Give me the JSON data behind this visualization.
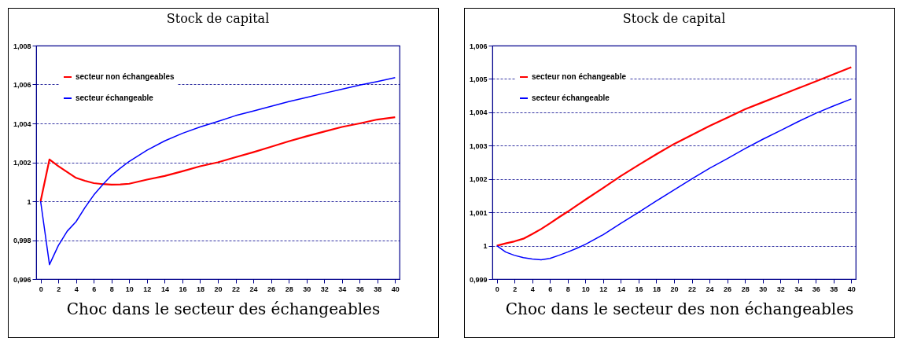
{
  "chart_data": [
    {
      "type": "line",
      "title": "Stock de capital",
      "annotations": [
        "Choc dans le secteur des échangeables"
      ],
      "x": [
        0,
        1,
        2,
        3,
        4,
        5,
        6,
        7,
        8,
        9,
        10,
        12,
        14,
        16,
        18,
        20,
        22,
        24,
        26,
        28,
        30,
        32,
        34,
        36,
        38,
        40
      ],
      "series": [
        {
          "name": "secteur non échangeables",
          "color": "#ff0000",
          "values": [
            1.0,
            1.00215,
            1.0018,
            1.0015,
            1.0012,
            1.00105,
            1.00093,
            1.00088,
            1.00085,
            1.00086,
            1.0009,
            1.00111,
            1.0013,
            1.00154,
            1.0018,
            1.002,
            1.00226,
            1.00252,
            1.0028,
            1.00308,
            1.00334,
            1.00358,
            1.00382,
            1.004,
            1.0042,
            1.00432
          ]
        },
        {
          "name": "secteur échangeable",
          "color": "#0000ff",
          "values": [
            1.0,
            0.99674,
            0.99772,
            0.99846,
            0.99895,
            0.99967,
            1.00032,
            1.00085,
            1.00133,
            1.0017,
            1.00205,
            1.00262,
            1.0031,
            1.00349,
            1.00382,
            1.0041,
            1.0044,
            1.00464,
            1.00488,
            1.00512,
            1.00533,
            1.00555,
            1.00576,
            1.00597,
            1.00615,
            1.00635
          ]
        }
      ],
      "xlim": [
        -0.5,
        40.5
      ],
      "xticks": [
        0,
        2,
        4,
        6,
        8,
        10,
        12,
        14,
        16,
        18,
        20,
        22,
        24,
        26,
        28,
        30,
        32,
        34,
        36,
        38,
        40
      ],
      "ylim": [
        0.996,
        1.008
      ],
      "yticks": [
        {
          "value": 0.996,
          "label": "0,996"
        },
        {
          "value": 0.998,
          "label": "0,998"
        },
        1,
        {
          "value": 1.002,
          "label": "1,002"
        },
        {
          "value": 1.004,
          "label": "1,004"
        },
        {
          "value": 1.006,
          "label": "1,006"
        },
        {
          "value": 1.008,
          "label": "1,008"
        }
      ],
      "grid": "y",
      "legend": "top left"
    },
    {
      "type": "line",
      "title": "Stock de capital",
      "annotations": [
        "Choc dans le secteur des non échangeables"
      ],
      "x": [
        0,
        1,
        2,
        3,
        4,
        5,
        6,
        7,
        8,
        9,
        10,
        12,
        14,
        16,
        18,
        20,
        22,
        24,
        26,
        28,
        30,
        32,
        34,
        36,
        38,
        40
      ],
      "series": [
        {
          "name": "secteur non échangeable",
          "color": "#ff0000",
          "values": [
            1.0,
            1.00007,
            1.00013,
            1.00021,
            1.00035,
            1.0005,
            1.00067,
            1.00085,
            1.00102,
            1.0012,
            1.00138,
            1.00173,
            1.00209,
            1.00242,
            1.00274,
            1.00305,
            1.00332,
            1.00359,
            1.00384,
            1.00409,
            1.0043,
            1.00451,
            1.00472,
            1.00493,
            1.00514,
            1.00535
          ]
        },
        {
          "name": "secteur échangeable",
          "color": "#0000ff",
          "values": [
            1.0,
            0.99981,
            0.99971,
            0.99964,
            0.9996,
            0.99958,
            0.99962,
            0.99971,
            0.99981,
            0.99992,
            1.00004,
            1.00033,
            1.00067,
            1.001,
            1.00134,
            1.00167,
            1.002,
            1.00232,
            1.00261,
            1.00291,
            1.00319,
            1.00345,
            1.00372,
            1.00397,
            1.00419,
            1.0044
          ]
        }
      ],
      "xlim": [
        -0.5,
        40.5
      ],
      "xticks": [
        0,
        2,
        4,
        6,
        8,
        10,
        12,
        14,
        16,
        18,
        20,
        22,
        24,
        26,
        28,
        30,
        32,
        34,
        36,
        38,
        40
      ],
      "ylim": [
        0.999,
        1.006
      ],
      "yticks": [
        {
          "value": 0.999,
          "label": "0,999"
        },
        1,
        {
          "value": 1.001,
          "label": "1,001"
        },
        {
          "value": 1.002,
          "label": "1,002"
        },
        {
          "value": 1.003,
          "label": "1,003"
        },
        {
          "value": 1.004,
          "label": "1,004"
        },
        {
          "value": 1.005,
          "label": "1,005"
        },
        {
          "value": 1.006,
          "label": "1,006"
        }
      ],
      "grid": "y",
      "legend": "top left"
    }
  ]
}
